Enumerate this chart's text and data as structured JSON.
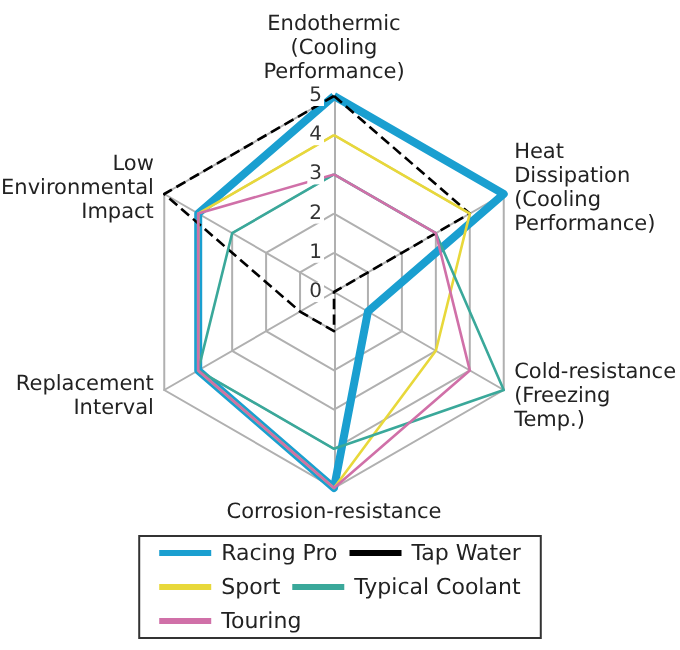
{
  "chart_data": {
    "type": "radar",
    "categories": [
      "Endothermic (Cooling Performance)",
      "Heat Dissipation (Cooling Performance)",
      "Cold-resistance (Freezing Temp.)",
      "Corrosion-resistance",
      "Replacement Interval",
      "Low Environmental Impact"
    ],
    "ylim": [
      0,
      5
    ],
    "yticks": [
      0,
      1,
      2,
      3,
      4,
      5
    ],
    "legend": "bottom",
    "marker": "none",
    "series": [
      {
        "name": "Racing Pro",
        "color": "#1a9fd0",
        "values": [
          5,
          5,
          1,
          5,
          4,
          4
        ]
      },
      {
        "name": "Tap Water",
        "color": "#000000",
        "line_style": "dashed",
        "values": [
          5,
          4,
          0,
          1,
          1,
          5
        ]
      },
      {
        "name": "Sport",
        "color": "#e8d83a",
        "values": [
          4,
          4,
          3,
          5,
          4,
          4
        ]
      },
      {
        "name": "Typical Coolant",
        "color": "#3aa89a",
        "values": [
          3,
          3,
          5,
          4,
          4,
          3
        ]
      },
      {
        "name": "Touring",
        "color": "#d070a8",
        "values": [
          3,
          3,
          4,
          5,
          4,
          4
        ]
      }
    ]
  }
}
